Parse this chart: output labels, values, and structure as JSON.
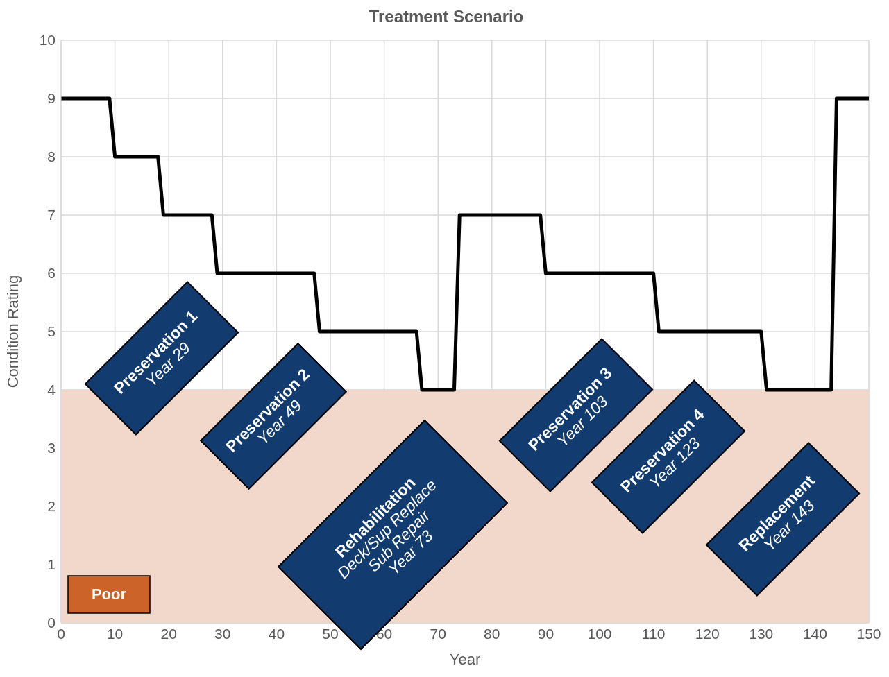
{
  "chart_data": {
    "type": "line",
    "title": "Treatment Scenario",
    "xlabel": "Year",
    "ylabel": "Condition Rating",
    "x": [
      0,
      9,
      10,
      18,
      19,
      28,
      29,
      47,
      48,
      66,
      67,
      73,
      74,
      89,
      90,
      110,
      111,
      130,
      131,
      143,
      144,
      150
    ],
    "series": [
      {
        "color": "#000000",
        "values": [
          9,
          9,
          8,
          8,
          7,
          7,
          6,
          6,
          5,
          5,
          4,
          4,
          7,
          7,
          6,
          6,
          5,
          5,
          4,
          4,
          9,
          9
        ]
      }
    ],
    "xlim": [
      0,
      150
    ],
    "xticks": [
      0,
      10,
      20,
      30,
      40,
      50,
      60,
      70,
      80,
      90,
      100,
      110,
      120,
      130,
      140,
      150
    ],
    "ylim": [
      0,
      10
    ],
    "yticks": [
      0,
      1,
      2,
      3,
      4,
      5,
      6,
      7,
      8,
      9,
      10
    ],
    "grid": true,
    "legend": false,
    "marker": "none",
    "line_style": "solid",
    "bands": [
      {
        "axis": "y",
        "from": 0,
        "to": 4,
        "label": "Poor",
        "color": "#f2d7cb"
      }
    ],
    "annotations": [
      "Preservation 1\nYear 29",
      "Preservation 2\nYear 49",
      "Rehabilitation\nDeck/Sup Replace\nSub Repair\nYear 73",
      "Preservation 3\nYear 103",
      "Preservation 4\nYear 123",
      "Replacement\nYear 143"
    ]
  }
}
